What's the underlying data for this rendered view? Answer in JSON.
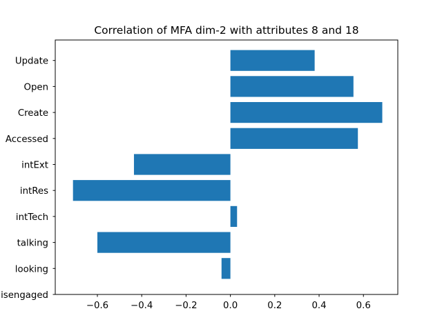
{
  "chart_data": {
    "type": "bar",
    "orientation": "horizontal",
    "title": "Correlation of MFA dim-2 with attributes 8 and 18",
    "xlabel": "",
    "ylabel": "",
    "categories": [
      "Update",
      "Open",
      "Create",
      "Accessed",
      "intExt",
      "intRes",
      "intTech",
      "talking",
      "looking",
      "disengaged"
    ],
    "values": [
      0.38,
      0.555,
      0.685,
      0.575,
      -0.435,
      -0.71,
      0.03,
      -0.6,
      -0.04,
      0.0
    ],
    "xlim": [
      -0.79,
      0.755
    ],
    "xticks": [
      -0.6,
      -0.4,
      -0.2,
      0.0,
      0.2,
      0.4,
      0.6
    ],
    "xtick_labels": [
      "−0.6",
      "−0.4",
      "−0.2",
      "0.0",
      "0.2",
      "0.4",
      "0.6"
    ],
    "bar_color": "#1f77b4",
    "grid": false,
    "legend": "none"
  }
}
